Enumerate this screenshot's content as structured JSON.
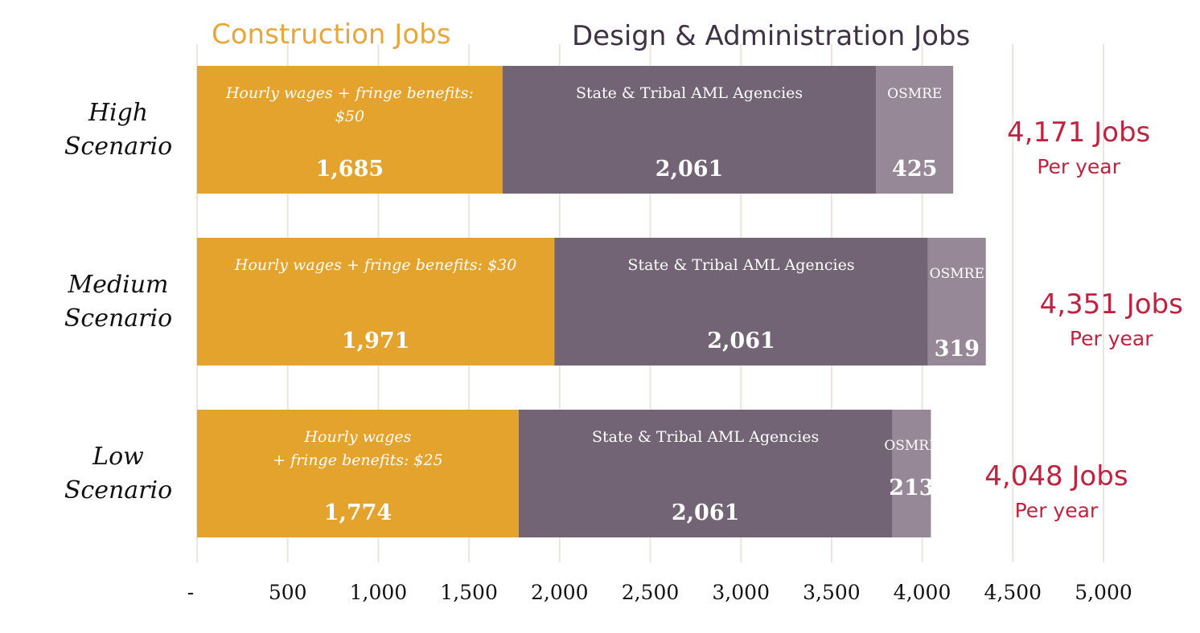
{
  "chart_data": {
    "type": "bar",
    "orientation": "horizontal",
    "stacked": true,
    "title": "",
    "xlabel": "",
    "ylabel": "",
    "xlim": [
      0,
      5000
    ],
    "grid": true,
    "x_ticks": [
      {
        "value": 0,
        "label": "-"
      },
      {
        "value": 500,
        "label": "500"
      },
      {
        "value": 1000,
        "label": "1,000"
      },
      {
        "value": 1500,
        "label": "1,500"
      },
      {
        "value": 2000,
        "label": "2,000"
      },
      {
        "value": 2500,
        "label": "2,500"
      },
      {
        "value": 3000,
        "label": "3,000"
      },
      {
        "value": 3500,
        "label": "3,500"
      },
      {
        "value": 4000,
        "label": "4,000"
      },
      {
        "value": 4500,
        "label": "4,500"
      },
      {
        "value": 5000,
        "label": "5,000"
      }
    ],
    "legend": [
      {
        "name": "Construction Jobs",
        "color": "#E3A32D"
      },
      {
        "name": "Design & Administration Jobs",
        "color": "#3F3244"
      }
    ],
    "categories": [
      {
        "label_lines": [
          "High",
          "Scenario"
        ],
        "total": {
          "main": "4,171 Jobs",
          "sub": "Per year"
        },
        "segments": [
          {
            "value": 1685,
            "value_label": "1,685",
            "label_lines": [
              "Hourly wages + fringe benefits:",
              "$50"
            ],
            "color": "#E3A32D"
          },
          {
            "value": 2061,
            "value_label": "2,061",
            "label_lines": [
              "State & Tribal AML Agencies"
            ],
            "color": "#726475"
          },
          {
            "value": 425,
            "value_label": "425",
            "label_lines": [
              "OSMRE"
            ],
            "color": "#978898"
          }
        ]
      },
      {
        "label_lines": [
          "Medium",
          "Scenario"
        ],
        "total": {
          "main": "4,351 Jobs",
          "sub": "Per year"
        },
        "segments": [
          {
            "value": 1971,
            "value_label": "1,971",
            "label_lines": [
              "Hourly wages + fringe benefits: $30"
            ],
            "color": "#E3A32D"
          },
          {
            "value": 2061,
            "value_label": "2,061",
            "label_lines": [
              "State & Tribal AML Agencies"
            ],
            "color": "#726475"
          },
          {
            "value": 319,
            "value_label": "319",
            "label_lines": [
              "OSMRE"
            ],
            "color": "#978898"
          }
        ]
      },
      {
        "label_lines": [
          "Low",
          "Scenario"
        ],
        "total": {
          "main": "4,048 Jobs",
          "sub": "Per year"
        },
        "segments": [
          {
            "value": 1774,
            "value_label": "1,774",
            "label_lines": [
              "Hourly wages",
              "+ fringe benefits: $25"
            ],
            "color": "#E3A32D"
          },
          {
            "value": 2061,
            "value_label": "2,061",
            "label_lines": [
              "State & Tribal AML Agencies"
            ],
            "color": "#726475"
          },
          {
            "value": 213,
            "value_label": "213",
            "label_lines": [
              "OSMRE"
            ],
            "color": "#978898"
          }
        ]
      }
    ],
    "colors": {
      "construction_legend": "#E8A73A",
      "design_legend": "#3F3244",
      "totals": "#C0223F",
      "grid": "#ECE4DD"
    }
  }
}
